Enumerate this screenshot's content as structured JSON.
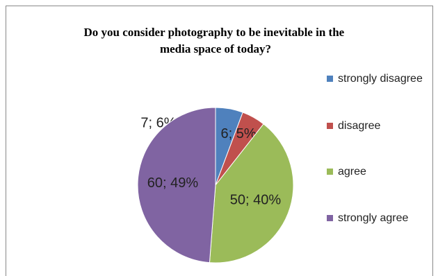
{
  "chart_data": {
    "type": "pie",
    "title": "Do you consider photography to be inevitable in the media space of today?",
    "categories": [
      "strongly disagree",
      "disagree",
      "agree",
      "strongly agree"
    ],
    "values": [
      7,
      6,
      50,
      60
    ],
    "value_labels": [
      "7; 6%",
      "6; 5%",
      "50; 40%",
      "60; 49%"
    ],
    "colors": [
      "#4f81bd",
      "#c0504d",
      "#9bbb59",
      "#8064a2"
    ],
    "legend": "right"
  }
}
